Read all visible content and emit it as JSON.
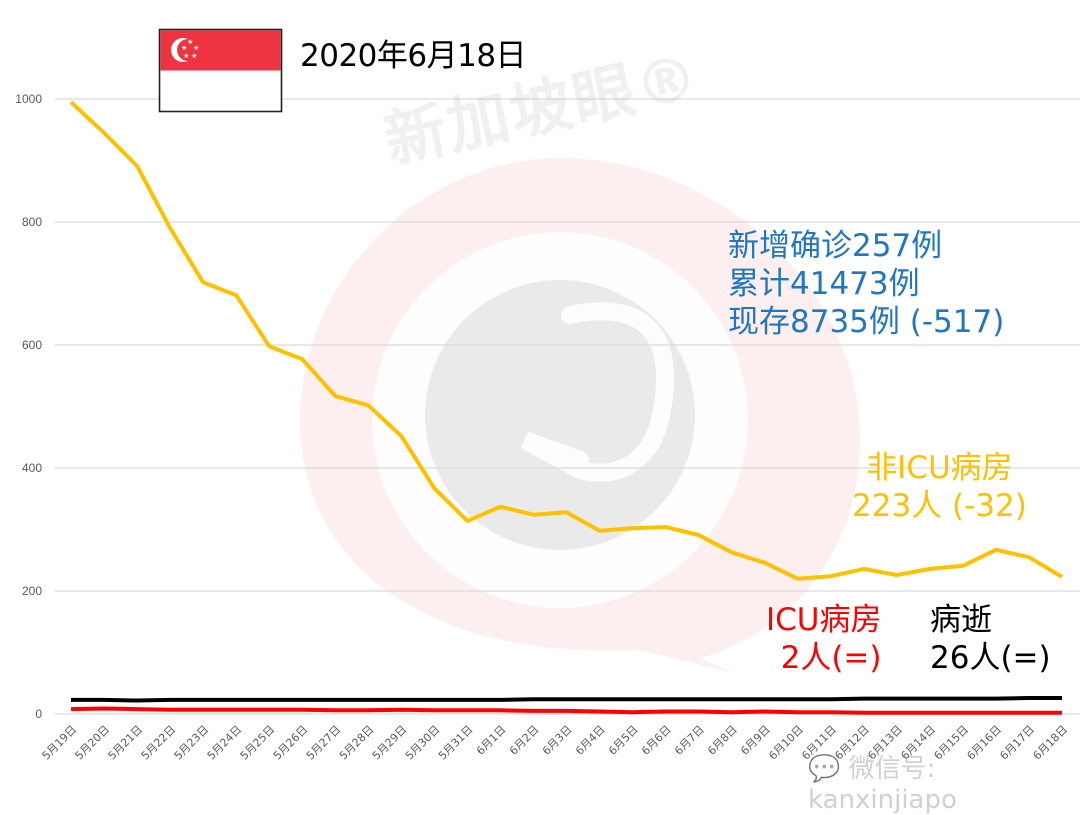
{
  "header": {
    "date_title": "2020年6月18日",
    "flag": {
      "name": "Singapore",
      "top_color": "#ef3340",
      "bottom_color": "#ffffff"
    }
  },
  "watermarks": {
    "brand": "新加坡眼®",
    "wechat": "微信号: kanxinjiapo"
  },
  "annotations": {
    "summary": {
      "color": "#1f77c3",
      "line1": "新增确诊257例",
      "line2": "累计41473例",
      "line3": "现存8735例 (-517)"
    },
    "non_icu": {
      "color": "#ffc000",
      "label": "非ICU病房",
      "value": "223人 (-32)"
    },
    "icu": {
      "color": "#ff0000",
      "label": "ICU病房",
      "value": "2人(=)"
    },
    "deaths": {
      "color": "#000000",
      "label": "病逝",
      "value": "26人(=)"
    }
  },
  "chart_data": {
    "type": "line",
    "title": "2020年6月18日",
    "xlabel": "",
    "ylabel": "",
    "ylim": [
      0,
      1000
    ],
    "yticks": [
      0,
      200,
      400,
      600,
      800,
      1000
    ],
    "grid": true,
    "legend": "inline annotations (right side)",
    "categories": [
      "5月19日",
      "5月20日",
      "5月21日",
      "5月22日",
      "5月23日",
      "5月24日",
      "5月25日",
      "5月26日",
      "5月27日",
      "5月28日",
      "5月29日",
      "5月30日",
      "5月31日",
      "6月1日",
      "6月2日",
      "6月3日",
      "6月4日",
      "6月5日",
      "6月6日",
      "6月7日",
      "6月8日",
      "6月9日",
      "6月10日",
      "6月11日",
      "6月12日",
      "6月13日",
      "6月14日",
      "6月15日",
      "6月16日",
      "6月17日",
      "6月18日"
    ],
    "series": [
      {
        "name": "非ICU病房",
        "color": "#ffc000",
        "values": [
          995,
          945,
          891,
          790,
          702,
          681,
          598,
          577,
          517,
          502,
          452,
          367,
          314,
          337,
          324,
          328,
          298,
          302,
          304,
          291,
          263,
          246,
          220,
          224,
          236,
          226,
          236,
          241,
          267,
          255,
          223
        ]
      },
      {
        "name": "ICU病房",
        "color": "#ff0000",
        "values": [
          8,
          9,
          8,
          7,
          7,
          7,
          7,
          7,
          6,
          6,
          7,
          6,
          6,
          6,
          5,
          5,
          4,
          3,
          4,
          4,
          3,
          4,
          3,
          3,
          2,
          2,
          2,
          2,
          2,
          2,
          2
        ]
      },
      {
        "name": "病逝",
        "color": "#000000",
        "values": [
          23,
          23,
          22,
          23,
          23,
          23,
          23,
          23,
          23,
          23,
          23,
          23,
          23,
          23,
          24,
          24,
          24,
          24,
          24,
          24,
          24,
          24,
          24,
          24,
          25,
          25,
          25,
          25,
          25,
          26,
          26
        ]
      }
    ]
  }
}
